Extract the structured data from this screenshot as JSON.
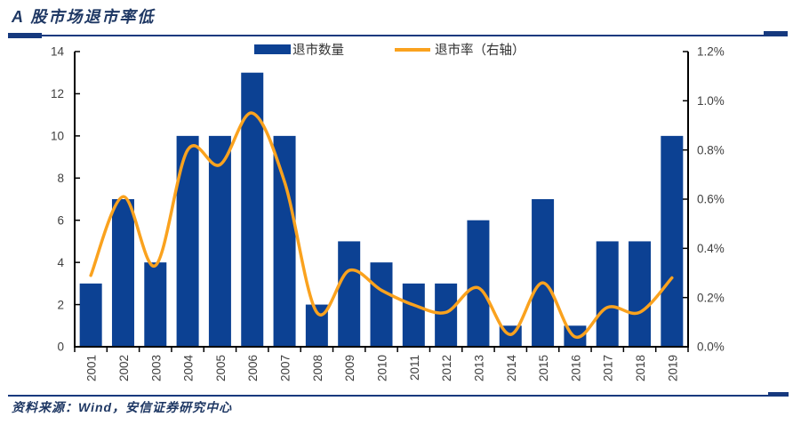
{
  "page": {
    "title": "A 股市场退市率低",
    "source": "资料来源：Wind，安信证券研究中心"
  },
  "colors": {
    "bar": "#0C4193",
    "line": "#FAA21E",
    "navy": "#1F3864",
    "rule": "#16397E",
    "axis_text": "#3F3F3F"
  },
  "legend": [
    {
      "label": "退市数量"
    },
    {
      "label": "退市率（右轴）"
    }
  ],
  "chart_data": {
    "type": "bar+line",
    "categories": [
      "2001",
      "2002",
      "2003",
      "2004",
      "2005",
      "2006",
      "2007",
      "2008",
      "2009",
      "2010",
      "2011",
      "2012",
      "2013",
      "2014",
      "2015",
      "2016",
      "2017",
      "2018",
      "2019"
    ],
    "series": [
      {
        "name": "退市数量",
        "type": "bar",
        "axis": "left",
        "values": [
          3,
          7,
          4,
          10,
          10,
          13,
          10,
          2,
          5,
          4,
          3,
          3,
          6,
          1,
          7,
          1,
          5,
          5,
          10
        ]
      },
      {
        "name": "退市率（右轴）",
        "type": "line",
        "axis": "right",
        "unit": "%",
        "values": [
          0.29,
          0.61,
          0.33,
          0.8,
          0.74,
          0.95,
          0.67,
          0.14,
          0.31,
          0.23,
          0.17,
          0.14,
          0.24,
          0.05,
          0.26,
          0.04,
          0.16,
          0.14,
          0.28
        ]
      }
    ],
    "left_axis": {
      "min": 0,
      "max": 14,
      "step": 2,
      "ticks": [
        "0",
        "2",
        "4",
        "6",
        "8",
        "10",
        "12",
        "14"
      ]
    },
    "right_axis": {
      "min": 0,
      "max": 1.2,
      "step": 0.2,
      "ticks": [
        "0.0%",
        "0.2%",
        "0.4%",
        "0.6%",
        "0.8%",
        "1.0%",
        "1.2%"
      ]
    },
    "grid": false,
    "legend_position": "top"
  }
}
